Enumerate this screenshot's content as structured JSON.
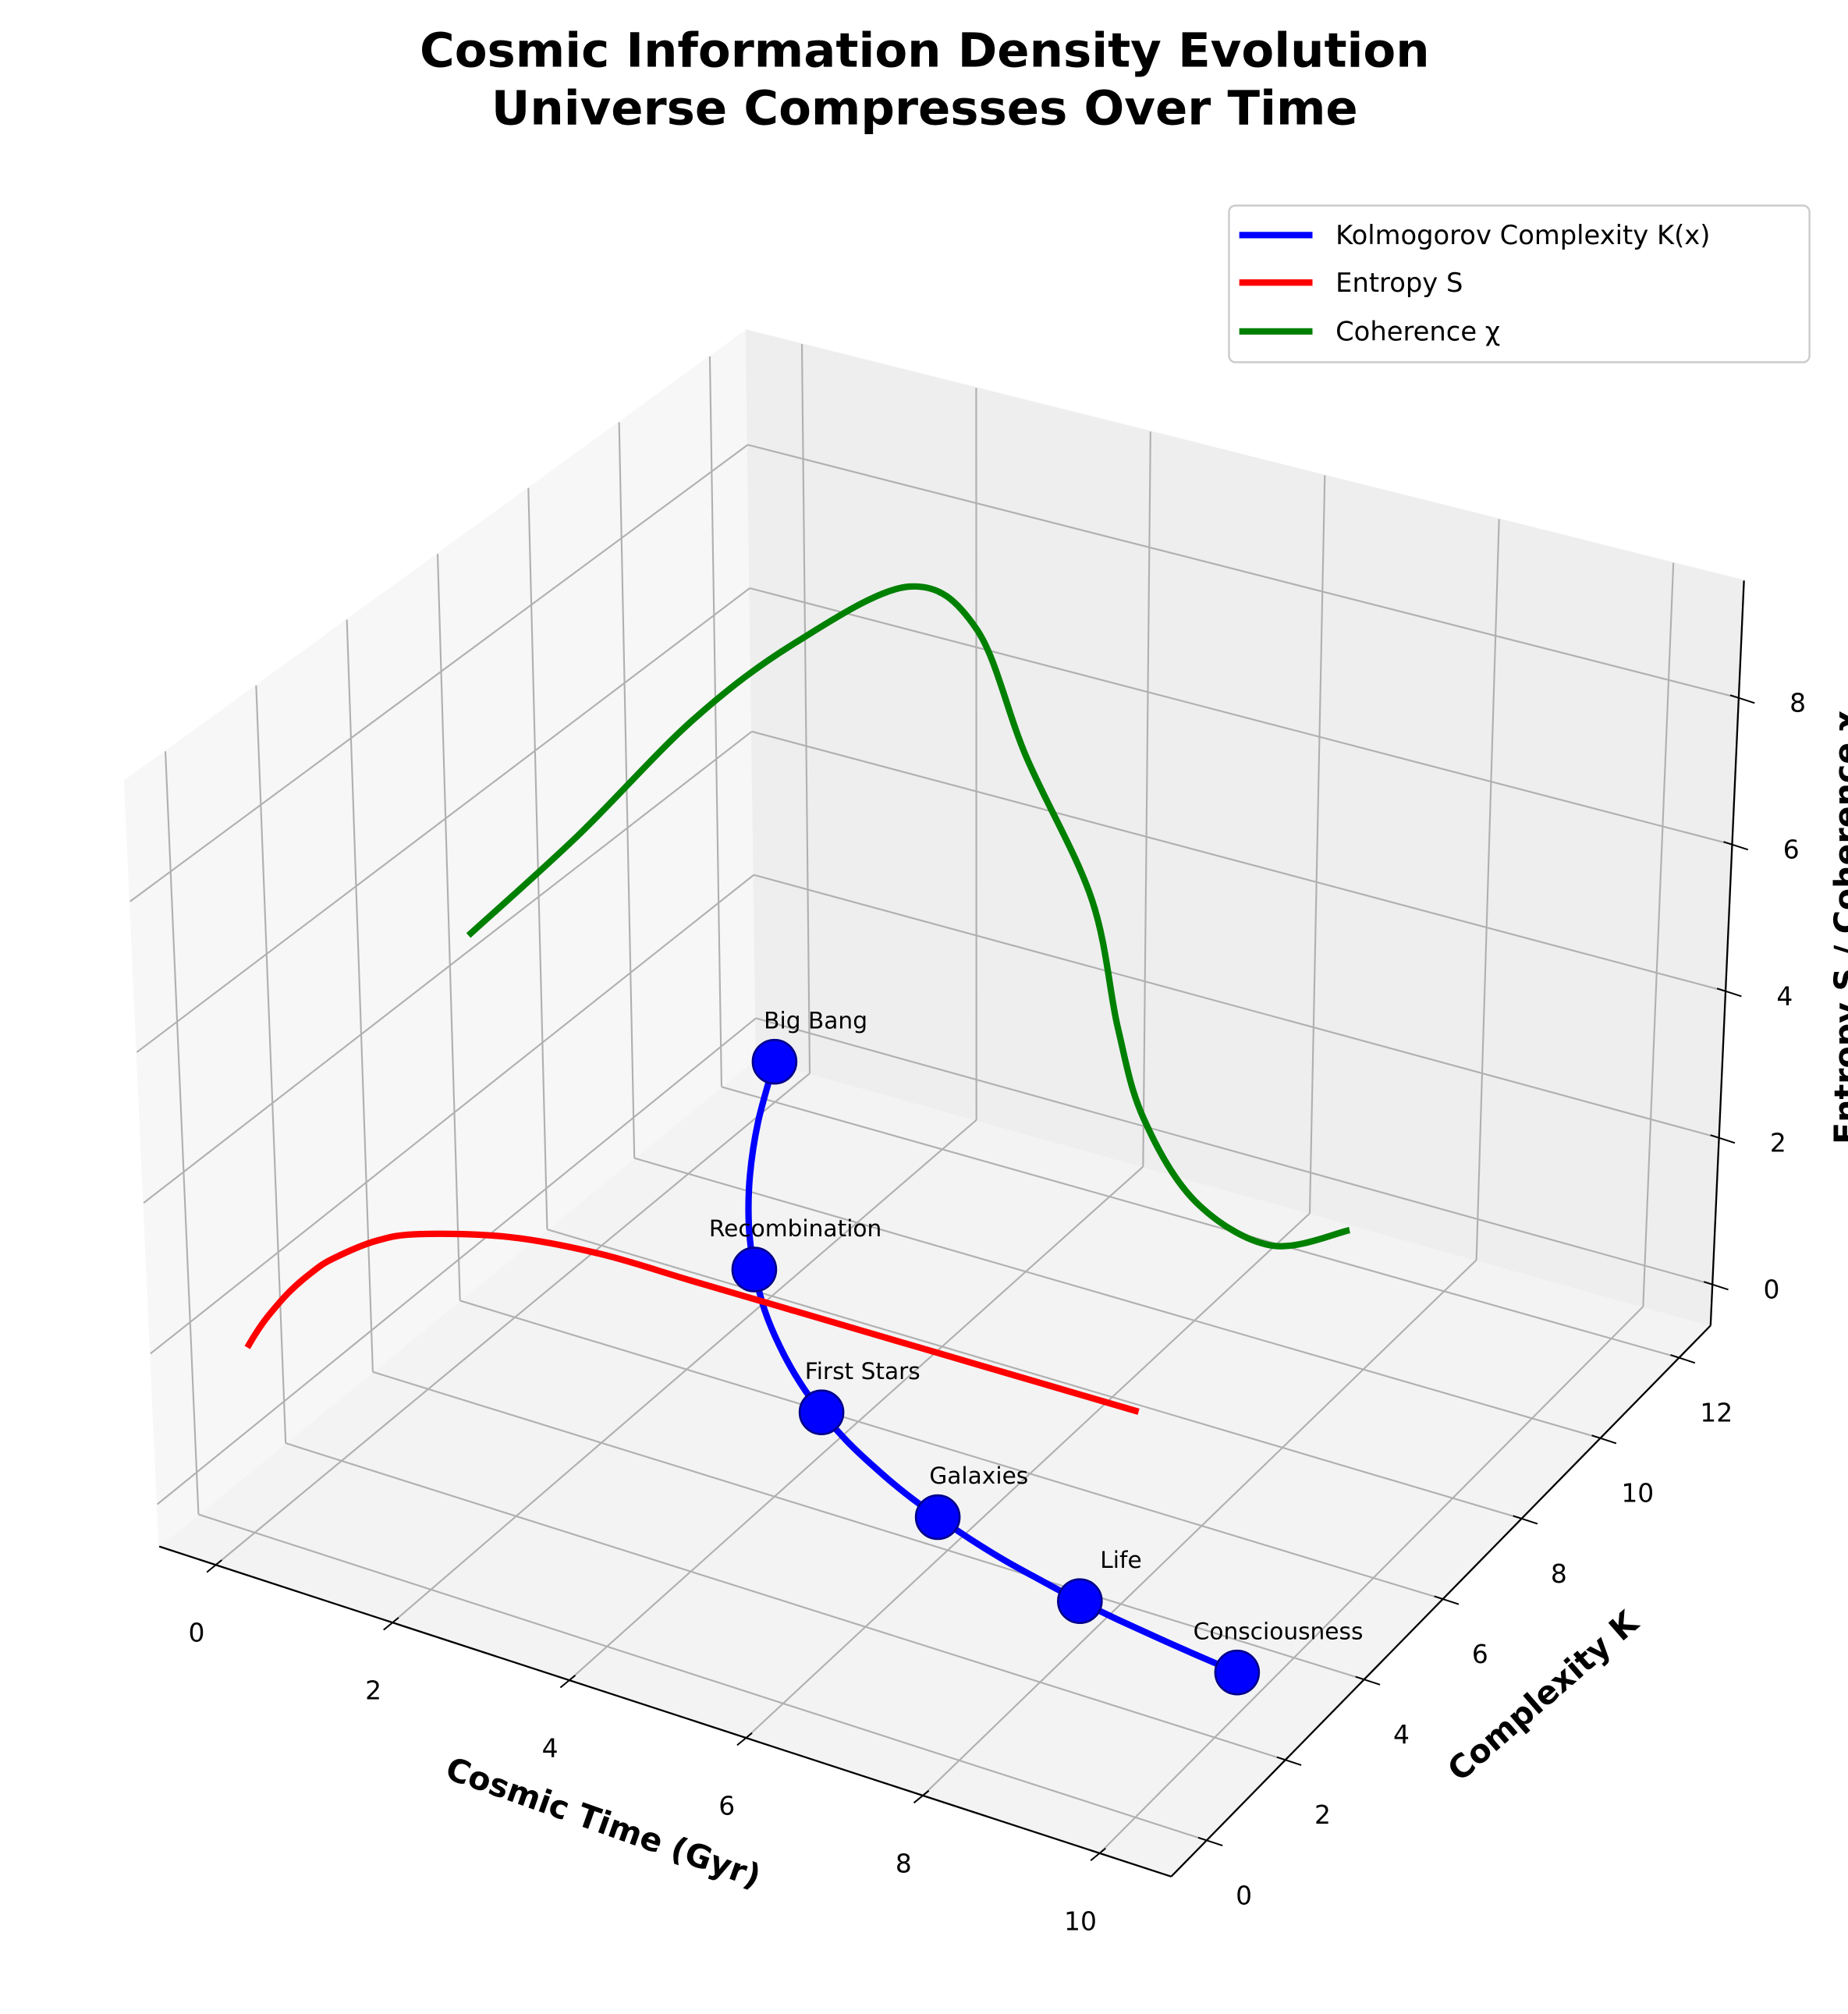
{
  "chart_data": {
    "type": "line3d",
    "title_lines": [
      "Cosmic Information Density Evolution",
      "Universe Compresses Over Time"
    ],
    "xlabel": "Cosmic Time (Gyr)",
    "ylabel": "Complexity K",
    "zlabel": "Entropy S / Coherence χ",
    "xlim": [
      -0.64,
      10.81
    ],
    "ylim": [
      -0.9,
      12.8
    ],
    "zlim": [
      -0.56,
      9.6
    ],
    "x_ticks": [
      0,
      2,
      4,
      6,
      8,
      10
    ],
    "y_ticks": [
      0,
      2,
      4,
      6,
      8,
      10,
      12
    ],
    "z_ticks": [
      0,
      2,
      4,
      6,
      8
    ],
    "grid": true,
    "legend_position": "top-right",
    "series": [
      {
        "name": "Kolmogorov Complexity K(x)",
        "color": "#0000ff",
        "t": [
          0,
          0.5,
          1,
          1.5,
          2,
          2.5,
          3,
          3.5,
          4,
          4.5,
          5,
          5.5,
          6,
          6.5,
          7,
          7.5,
          8,
          8.5,
          9,
          9.5,
          10
        ],
        "k": [
          12,
          10.65,
          9.48,
          8.47,
          7.6,
          6.84,
          6.19,
          5.62,
          5.13,
          4.71,
          4.35,
          4.03,
          3.76,
          3.52,
          3.31,
          3.14,
          2.98,
          2.85,
          2.74,
          2.64,
          2.55
        ],
        "z": [
          0,
          0,
          0,
          0,
          0,
          0,
          0,
          0,
          0,
          0,
          0,
          0,
          0,
          0,
          0,
          0,
          0,
          0,
          0,
          0,
          0
        ]
      },
      {
        "name": "Entropy S",
        "color": "#ff0000",
        "t": [
          0,
          0.1,
          0.25,
          0.5,
          0.75,
          1,
          1.5,
          2,
          3,
          4,
          5,
          6,
          7,
          8,
          9,
          10
        ],
        "k": [
          0,
          0,
          0,
          0,
          0,
          0,
          0,
          0,
          0,
          0,
          0,
          0,
          0,
          0,
          0,
          0
        ],
        "z": [
          1.9,
          2.12,
          2.41,
          2.82,
          3.16,
          3.44,
          3.86,
          4.13,
          4.45,
          4.59,
          4.6,
          4.61,
          4.62,
          4.63,
          4.64,
          4.65
        ]
      },
      {
        "name": "Coherence χ",
        "color": "#008000",
        "t": [
          0,
          0.71,
          1.64,
          2.26,
          3.15,
          4.11,
          4.87,
          5.91,
          6.41,
          6.9,
          7.69,
          8.7,
          10
        ],
        "k": [
          5.2,
          6.3,
          7.1,
          8.2,
          9.0,
          8.6,
          8.2,
          7.6,
          7.2,
          6.8,
          6.4,
          6.1,
          5.2
        ],
        "z": [
          5.0,
          6.08,
          7.59,
          8.33,
          9.0,
          8.91,
          7.61,
          6.32,
          4.95,
          4.1,
          3.45,
          3.35,
          4.44
        ]
      }
    ],
    "events": [
      {
        "label": "Big Bang",
        "t": 0,
        "k": 12,
        "z": 0
      },
      {
        "label": "Recombination",
        "t": 2,
        "k": 7.6,
        "z": 0
      },
      {
        "label": "First Stars",
        "t": 4,
        "k": 5.13,
        "z": 0
      },
      {
        "label": "Galaxies",
        "t": 6,
        "k": 3.76,
        "z": 0
      },
      {
        "label": "Life",
        "t": 8,
        "k": 2.98,
        "z": 0
      },
      {
        "label": "Consciousness",
        "t": 10,
        "k": 2.55,
        "z": 0
      }
    ],
    "marker_color": "#0000ff",
    "marker_edge_color": "#00008b"
  },
  "legend": {
    "items": [
      {
        "label": "Kolmogorov Complexity K(x)",
        "color": "#0000ff"
      },
      {
        "label": "Entropy S",
        "color": "#ff0000"
      },
      {
        "label": "Coherence χ",
        "color": "#008000"
      }
    ]
  }
}
